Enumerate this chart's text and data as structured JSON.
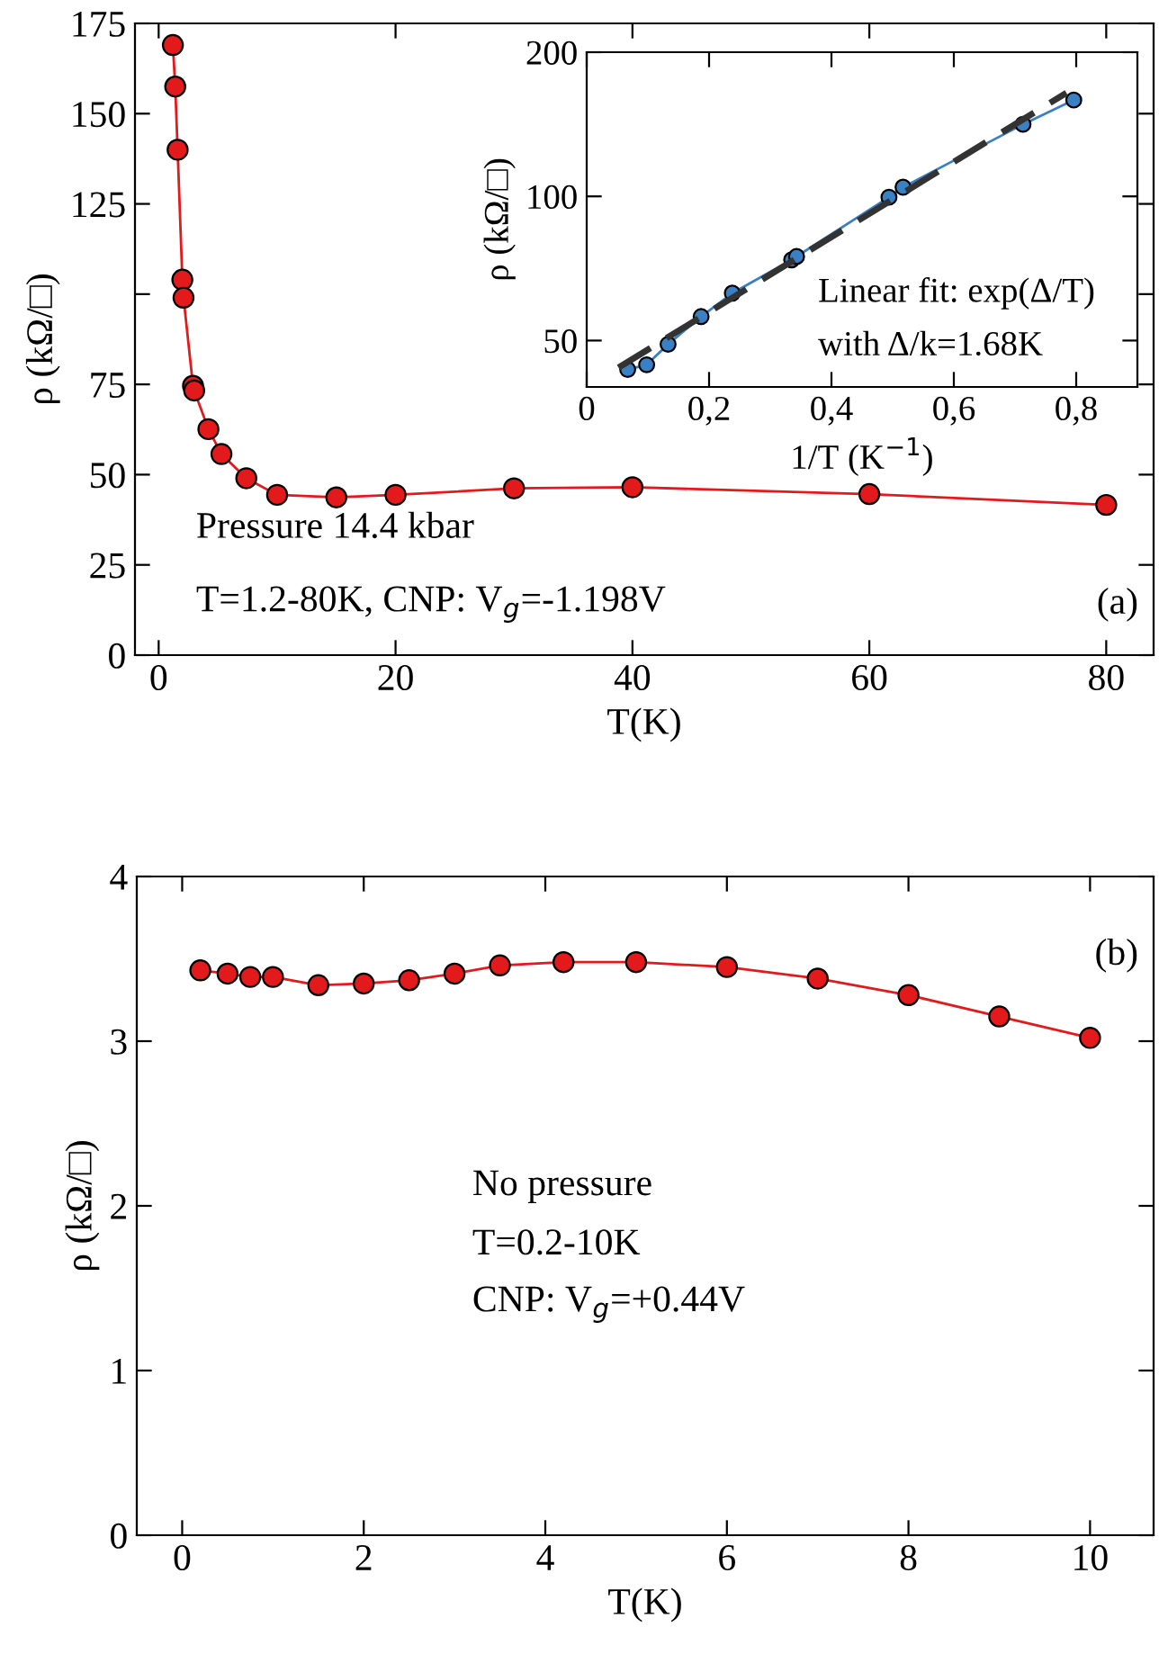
{
  "chart_data": [
    {
      "type": "line",
      "xlabel": "T(K)",
      "ylabel": "ρ (kΩ/□)",
      "xlim": [
        -2,
        84
      ],
      "xticks": [
        0,
        20,
        40,
        60,
        80
      ],
      "ylim": [
        0,
        175
      ],
      "yticks": [
        0,
        25,
        50,
        75,
        {
          "value": 100,
          "label": null
        },
        125,
        150,
        175
      ],
      "grid": false,
      "marker": "circle",
      "line_style": "solid",
      "series": [
        {
          "color": "#e31a1c",
          "x": [
            1.2,
            1.4,
            1.6,
            2.0,
            2.1,
            2.9,
            3.0,
            4.2,
            5.3,
            7.4,
            10,
            15,
            20,
            30,
            40,
            60,
            80
          ],
          "values": [
            169,
            157.5,
            140,
            104,
            99,
            74.6,
            73.3,
            62.6,
            55.7,
            49,
            44.4,
            43.7,
            44.4,
            46.2,
            46.5,
            44.6,
            41.6
          ]
        }
      ],
      "annotations": [
        "Pressure 14.4 kbar",
        "T=1.2-80K, CNP: V$_{g}$=-1.198V",
        "(a)"
      ]
    },
    {
      "type": "line",
      "xlabel": "1/T (K$^{−1}$)",
      "ylabel": "ρ (kΩ/□)",
      "log": "y",
      "xlim": [
        0,
        0.9
      ],
      "xticks": [
        0,
        {
          "value": 0.2,
          "label": "0,2"
        },
        {
          "value": 0.4,
          "label": "0,4"
        },
        {
          "value": 0.6,
          "label": "0,6"
        },
        {
          "value": 0.8,
          "label": "0,8"
        }
      ],
      "ylim": [
        40,
        200
      ],
      "yticks": [
        50,
        100,
        200
      ],
      "grid": false,
      "series": [
        {
          "color": "#3a80c4",
          "marker": "circle",
          "line_style": "solid",
          "x": [
            0.067,
            0.098,
            0.133,
            0.187,
            0.238,
            0.335,
            0.343,
            0.494,
            0.517,
            0.713,
            0.796
          ],
          "values": [
            43.5,
            44.5,
            49.1,
            56.1,
            62.8,
            73.7,
            74.9,
            99.6,
            104.5,
            141.4,
            158.9
          ]
        },
        {
          "type": "line",
          "color": "#333333",
          "marker": "none",
          "line_style": "dashed",
          "x": [
            0.052,
            0.784
          ],
          "values": [
            43.9,
            164.5
          ]
        }
      ],
      "annotations": [
        "Linear fit: exp(Δ/T)",
        "with Δ/k=1.68K"
      ]
    },
    {
      "type": "line",
      "xlabel": "T(K)",
      "ylabel": "ρ (kΩ/□)",
      "xlim": [
        -0.5,
        10.7
      ],
      "xticks": [
        0,
        2,
        4,
        6,
        8,
        10
      ],
      "ylim": [
        0,
        4
      ],
      "yticks": [
        0,
        1,
        2,
        3,
        4
      ],
      "grid": false,
      "marker": "circle",
      "line_style": "solid",
      "series": [
        {
          "color": "#e31a1c",
          "x": [
            0.2,
            0.5,
            0.75,
            1.0,
            1.5,
            2.0,
            2.5,
            3.0,
            3.5,
            4.2,
            5.0,
            6.0,
            7.0,
            8.0,
            9.0,
            10.0
          ],
          "values": [
            3.43,
            3.41,
            3.39,
            3.39,
            3.34,
            3.35,
            3.37,
            3.41,
            3.46,
            3.48,
            3.48,
            3.45,
            3.38,
            3.28,
            3.15,
            3.02
          ]
        }
      ],
      "annotations": [
        "(b)",
        "No pressure",
        "T=0.2-10K",
        "CNP: V$_{g}$=+0.44V"
      ]
    }
  ]
}
